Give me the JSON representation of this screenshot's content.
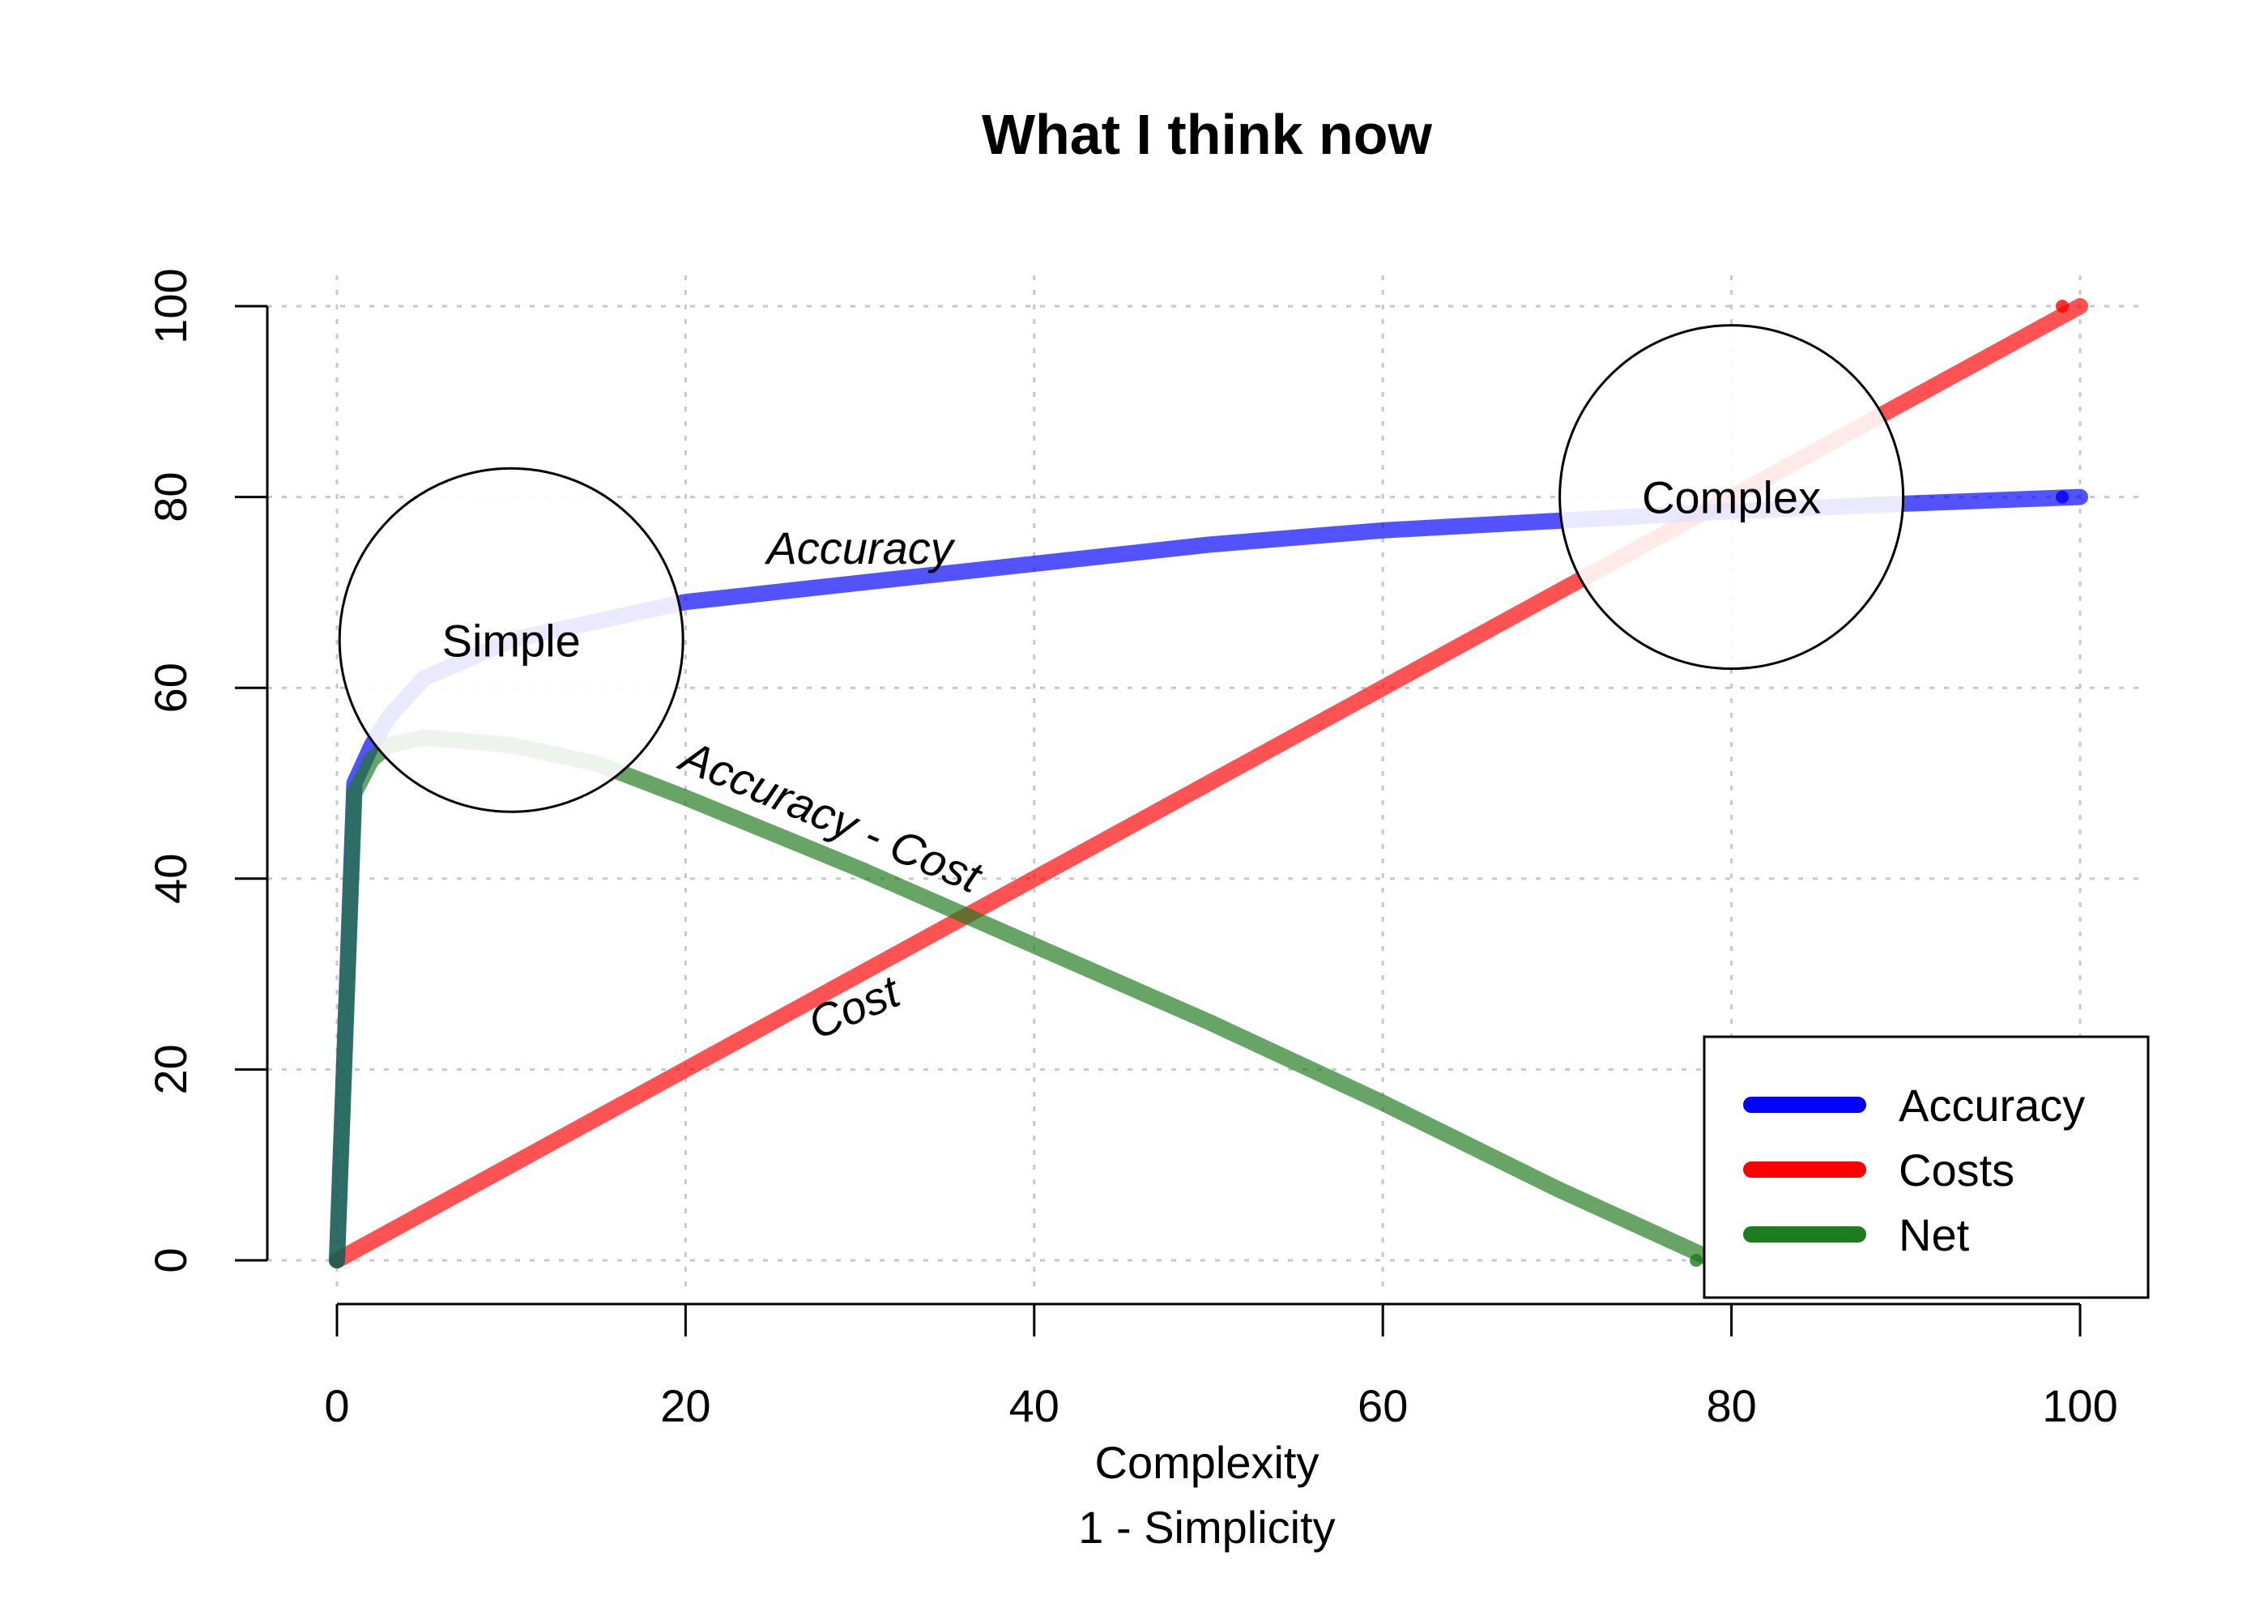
{
  "chart_data": {
    "type": "line",
    "title": "What I think now",
    "xlabel": [
      "Complexity",
      "1 - Simplicity"
    ],
    "ylabel": "",
    "xlim": [
      0,
      100
    ],
    "ylim": [
      0,
      100
    ],
    "x_ticks": [
      "0",
      "20",
      "40",
      "60",
      "80",
      "100"
    ],
    "y_ticks": [
      "0",
      "20",
      "40",
      "60",
      "80",
      "100"
    ],
    "grid": true,
    "legend_position": "bottom-right",
    "series": [
      {
        "name": "Accuracy",
        "color": "#0000ff",
        "x": [
          0,
          1,
          2,
          3,
          5,
          10,
          15,
          20,
          30,
          40,
          50,
          60,
          70,
          80,
          90,
          100
        ],
        "y": [
          0,
          50,
          54,
          57,
          61,
          65,
          67,
          69,
          71,
          73,
          75,
          76.5,
          77.5,
          78.5,
          79.3,
          80
        ]
      },
      {
        "name": "Costs",
        "color": "#ff0000",
        "x": [
          0,
          100
        ],
        "y": [
          0,
          100
        ]
      },
      {
        "name": "Net",
        "color": "#1e7b1e",
        "x": [
          0,
          1,
          2,
          3,
          5,
          10,
          15,
          20,
          30,
          40,
          50,
          60,
          70,
          79
        ],
        "y": [
          0,
          49,
          52.5,
          54,
          54.8,
          54,
          52,
          48.5,
          41,
          33,
          25,
          16.5,
          7.5,
          0
        ]
      }
    ],
    "annotations": [
      {
        "text": "Accuracy",
        "x": 30,
        "y": 73,
        "angle": 0
      },
      {
        "text": "Accuracy - Cost",
        "x": 28,
        "y": 45,
        "angle": 23
      },
      {
        "text": "Cost",
        "x": 30,
        "y": 25,
        "angle": -23
      }
    ],
    "circles": [
      {
        "label": "Simple",
        "x": 10,
        "y": 65
      },
      {
        "label": "Complex",
        "x": 80,
        "y": 80
      }
    ]
  }
}
